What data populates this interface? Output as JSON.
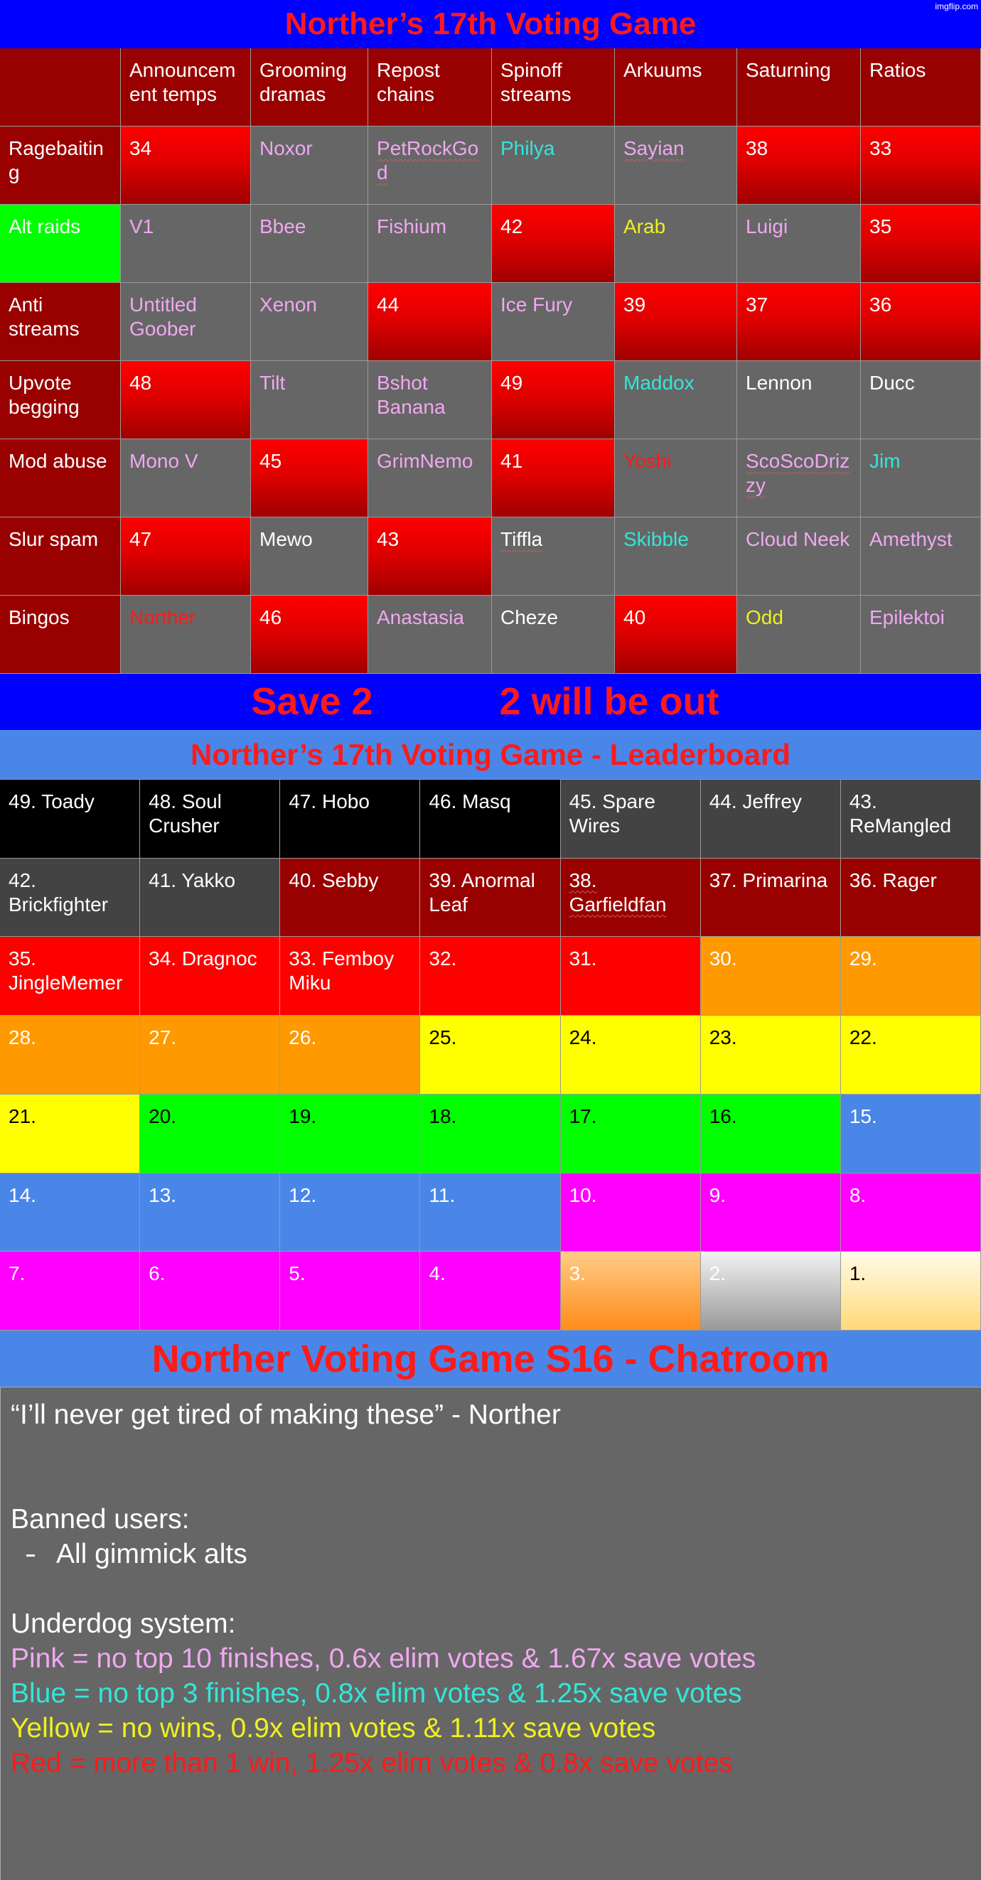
{
  "watermark": "imgflip.com",
  "title": "Norther’s 17th Voting Game",
  "voting_table": {
    "columns": [
      "Announcement temps",
      "Grooming dramas",
      "Repost chains",
      "Spinoff streams",
      "Arkuums",
      "Saturning",
      "Ratios"
    ],
    "rows": [
      {
        "label": "Ragebaiting",
        "cells": [
          34,
          "Noxor",
          "PetRockGod",
          "Philya",
          "Sayian",
          38,
          33
        ]
      },
      {
        "label": "Alt raids",
        "cells": [
          "V1",
          "Bbee",
          "Fishium",
          42,
          "Arab",
          "Luigi",
          35
        ]
      },
      {
        "label": "Anti streams",
        "cells": [
          "Untitled Goober",
          "Xenon",
          44,
          "Ice Fury",
          39,
          37,
          36
        ]
      },
      {
        "label": "Upvote begging",
        "cells": [
          48,
          "Tilt",
          "Bshot Banana",
          49,
          "Maddox",
          "Lennon",
          "Ducc"
        ]
      },
      {
        "label": "Mod abuse",
        "cells": [
          "Mono V",
          45,
          "GrimNemo",
          41,
          "Yoshi",
          "ScoScoDrizzy",
          "Jim"
        ]
      },
      {
        "label": "Slur spam",
        "cells": [
          47,
          "Mewo",
          43,
          "Tiffla",
          "Skibble",
          "Cloud Neek",
          "Amethyst"
        ]
      },
      {
        "label": "Bingos",
        "cells": [
          "Norther",
          46,
          "Anastasia",
          "Cheze",
          40,
          "Odd",
          "Epilektoi"
        ]
      }
    ]
  },
  "save_banner": {
    "left": "Save 2",
    "right": "2 will be out"
  },
  "leaderboard": {
    "title": "Norther’s 17th Voting Game - Leaderboard",
    "entries": [
      "49. Toady",
      "48. Soul Crusher",
      "47. Hobo",
      "46. Masq",
      "45. Spare Wires",
      "44. Jeffrey",
      "43. ReMangled",
      "42. Brickfighter",
      "41. Yakko",
      "40. Sebby",
      "39. Anormal Leaf",
      "38. Garfieldfan",
      "37. Primarina",
      "36. Rager",
      "35. JingleMemer",
      "34. Dragnoc",
      "33. Femboy Miku",
      "32.",
      "31.",
      "30.",
      "29.",
      "28.",
      "27.",
      "26.",
      "25.",
      "24.",
      "23.",
      "22.",
      "21.",
      "20.",
      "19.",
      "18.",
      "17.",
      "16.",
      "15.",
      "14.",
      "13.",
      "12.",
      "11.",
      "10.",
      "9.",
      "8.",
      "7.",
      "6.",
      "5.",
      "4.",
      "3.",
      "2.",
      "1."
    ]
  },
  "chatroom": {
    "title": "Norther Voting Game S16 - Chatroom",
    "quote": "“I’ll never get tired of making these” - Norther",
    "banned_heading": "Banned users:",
    "banned_list": [
      "All gimmick alts"
    ],
    "underdog_heading": "Underdog system:",
    "underdog_rules": [
      "Pink = no top 10 finishes, 0.6x elim votes & 1.67x save votes",
      "Blue = no top 3 finishes, 0.8x elim votes & 1.25x save votes",
      "Yellow = no wins, 0.9x elim votes & 1.11x save votes",
      "Red = more than 1 win, 1.25x elim votes & 0.8x save votes"
    ]
  }
}
